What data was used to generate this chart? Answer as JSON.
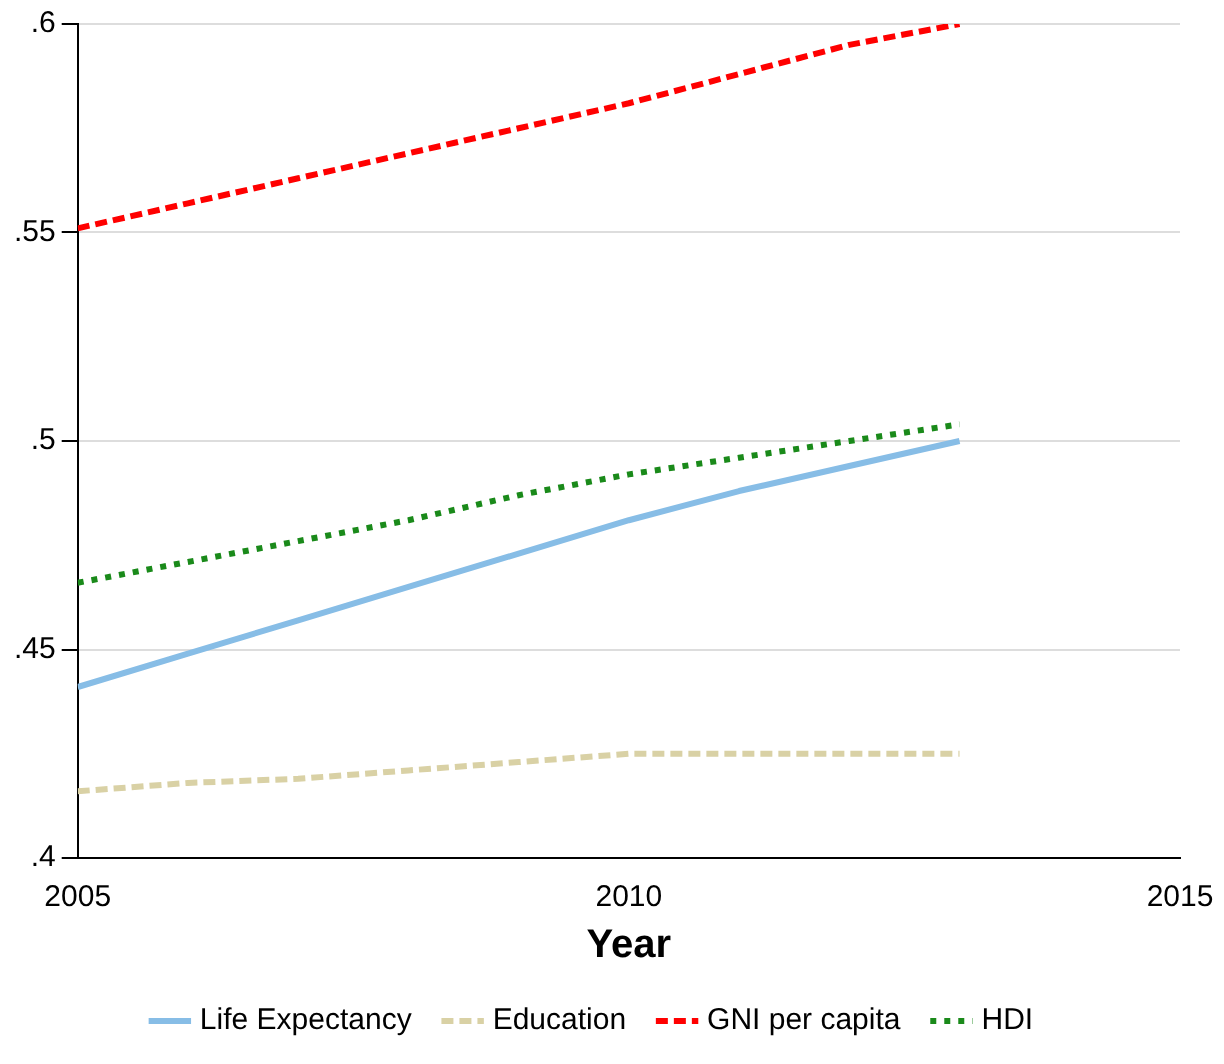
{
  "chart_data": {
    "type": "line",
    "xlabel": "Year",
    "x": [
      2005,
      2006,
      2007,
      2008,
      2009,
      2010,
      2011,
      2012,
      2013
    ],
    "series": [
      {
        "name": "Life Expectancy",
        "color": "#87bde6",
        "line_style": "solid",
        "values": [
          0.441,
          0.449,
          0.457,
          0.465,
          0.473,
          0.481,
          0.488,
          0.494,
          0.5
        ]
      },
      {
        "name": "Education",
        "color": "#d9d1a5",
        "line_style": "dashed",
        "values": [
          0.416,
          0.418,
          0.419,
          0.421,
          0.423,
          0.425,
          0.425,
          0.425,
          0.425
        ]
      },
      {
        "name": "GNI per capita",
        "color": "#ff0000",
        "line_style": "dashed",
        "values": [
          0.551,
          0.557,
          0.563,
          0.569,
          0.575,
          0.581,
          0.588,
          0.595,
          0.6
        ]
      },
      {
        "name": "HDI",
        "color": "#1a8a1a",
        "line_style": "dotted",
        "values": [
          0.466,
          0.471,
          0.476,
          0.481,
          0.487,
          0.492,
          0.496,
          0.5,
          0.504
        ]
      }
    ],
    "xlim": [
      2005,
      2015
    ],
    "xticks": [
      2005,
      2010,
      2015
    ],
    "ylim": [
      0.4,
      0.6
    ],
    "yticks": [
      {
        "value": 0.4,
        "label": ".4"
      },
      {
        "value": 0.45,
        "label": ".45"
      },
      {
        "value": 0.5,
        "label": ".5"
      },
      {
        "value": 0.55,
        "label": ".55"
      },
      {
        "value": 0.6,
        "label": ".6"
      }
    ],
    "grid": "y",
    "legend": "bottom",
    "marker": "none"
  }
}
